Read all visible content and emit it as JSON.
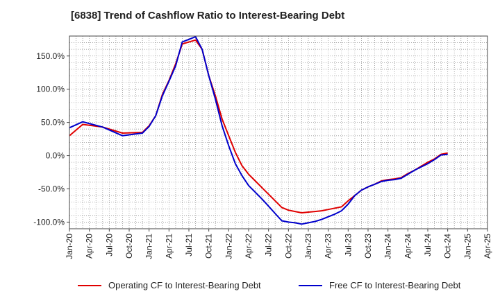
{
  "chart_data": {
    "type": "line",
    "title": "[6838]  Trend of Cashflow Ratio to Interest-Bearing Debt",
    "xlabel": "",
    "ylabel": "",
    "x_tick_labels": [
      "Jan-20",
      "Apr-20",
      "Jul-20",
      "Oct-20",
      "Jan-21",
      "Apr-21",
      "Jul-21",
      "Oct-21",
      "Jan-22",
      "Apr-22",
      "Jul-22",
      "Oct-22",
      "Jan-23",
      "Apr-23",
      "Jul-23",
      "Oct-23",
      "Jan-24",
      "Apr-24",
      "Jul-24",
      "Oct-24",
      "Jan-25",
      "Apr-25"
    ],
    "y_tick_labels": [
      "-100.0%",
      "-50.0%",
      "0.0%",
      "50.0%",
      "100.0%",
      "150.0%"
    ],
    "y_ticks": [
      -100,
      -50,
      0,
      50,
      100,
      150
    ],
    "ylim": [
      -110,
      180
    ],
    "x": [
      "2020-01",
      "2020-03",
      "2020-06",
      "2020-09",
      "2020-12",
      "2021-01",
      "2021-02",
      "2021-03",
      "2021-04",
      "2021-05",
      "2021-06",
      "2021-07",
      "2021-08",
      "2021-09",
      "2021-10",
      "2021-11",
      "2021-12",
      "2022-01",
      "2022-02",
      "2022-03",
      "2022-04",
      "2022-05",
      "2022-06",
      "2022-07",
      "2022-08",
      "2022-09",
      "2022-10",
      "2022-11",
      "2022-12",
      "2023-01",
      "2023-02",
      "2023-03",
      "2023-04",
      "2023-05",
      "2023-06",
      "2023-07",
      "2023-08",
      "2023-09",
      "2023-10",
      "2023-11",
      "2023-12",
      "2024-01",
      "2024-02",
      "2024-03",
      "2024-04",
      "2024-05",
      "2024-06",
      "2024-07",
      "2024-08",
      "2024-09",
      "2024-10"
    ],
    "series": [
      {
        "name": "Operating CF to Interest-Bearing Debt",
        "color": "#e00000",
        "values": [
          30,
          47,
          43,
          34,
          35,
          45,
          60,
          92,
          113,
          138,
          168,
          171,
          174,
          160,
          120,
          90,
          55,
          30,
          5,
          -15,
          -28,
          -38,
          -48,
          -58,
          -68,
          -78,
          -82,
          -84,
          -86,
          -85,
          -84,
          -83,
          -81,
          -79,
          -77,
          -68,
          -60,
          -52,
          -47,
          -43,
          -38,
          -36,
          -35,
          -33,
          -27,
          -22,
          -16,
          -10,
          -5,
          2,
          4
        ]
      },
      {
        "name": "Free CF to Interest-Bearing Debt",
        "color": "#0000cc",
        "values": [
          42,
          51,
          43,
          30,
          34,
          44,
          60,
          90,
          112,
          135,
          171,
          175,
          179,
          160,
          120,
          85,
          45,
          15,
          -12,
          -30,
          -45,
          -55,
          -65,
          -76,
          -87,
          -98,
          -100,
          -101,
          -103,
          -101,
          -99,
          -96,
          -92,
          -88,
          -83,
          -73,
          -60,
          -52,
          -47,
          -43,
          -39,
          -37,
          -36,
          -34,
          -28,
          -22,
          -17,
          -12,
          -6,
          1,
          2
        ]
      }
    ],
    "grid": true,
    "legend_position": "bottom"
  }
}
